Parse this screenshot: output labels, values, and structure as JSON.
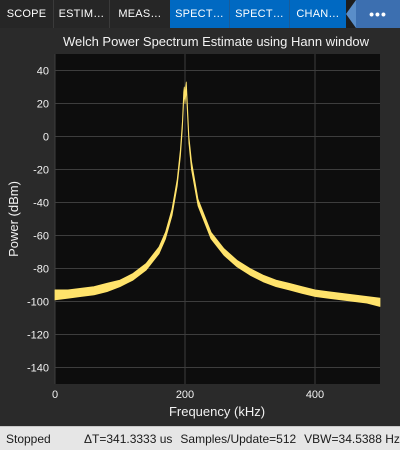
{
  "toolstrip": {
    "tabs": [
      {
        "label": "SCOPE",
        "active": false
      },
      {
        "label": "ESTIM…",
        "active": false
      },
      {
        "label": "MEAS…",
        "active": false
      },
      {
        "label": "SPECT…",
        "active": true
      },
      {
        "label": "SPECT…",
        "active": true
      },
      {
        "label": "CHAN…",
        "active": true
      }
    ],
    "overflow_label": "•••"
  },
  "colors": {
    "trace": "#ffe36b",
    "plot_bg": "#0d0d0d",
    "panel_bg": "#2a2a2a",
    "grid": "#3d3d3d",
    "tab_active": "#0069c2"
  },
  "chart_data": {
    "type": "line",
    "title": "Welch Power Spectrum Estimate using Hann window",
    "xlabel": "Frequency (kHz)",
    "ylabel": "Power (dBm)",
    "xlim": [
      0,
      500
    ],
    "ylim": [
      -150,
      50
    ],
    "xticks": [
      0,
      200,
      400
    ],
    "yticks": [
      40,
      20,
      0,
      -20,
      -40,
      -60,
      -80,
      -100,
      -120,
      -140
    ],
    "grid": true,
    "series": [
      {
        "x": [
          0,
          20,
          40,
          60,
          80,
          100,
          120,
          140,
          160,
          170,
          180,
          188,
          193,
          196,
          198,
          199,
          200,
          201,
          202,
          204,
          206,
          210,
          220,
          240,
          260,
          280,
          300,
          320,
          340,
          360,
          380,
          400,
          420,
          440,
          460,
          480,
          500
        ],
        "lower": [
          -99,
          -98,
          -97,
          -96,
          -94,
          -91,
          -87,
          -81,
          -71,
          -62,
          -48,
          -30,
          -12,
          5,
          22,
          26,
          20,
          25,
          28,
          12,
          -4,
          -20,
          -42,
          -62,
          -72,
          -79,
          -84,
          -88,
          -91,
          -93,
          -95,
          -97,
          -98,
          -99,
          -100,
          -101,
          -103
        ],
        "upper": [
          -93,
          -93,
          -92,
          -91,
          -89,
          -87,
          -83,
          -77,
          -67,
          -58,
          -44,
          -26,
          -8,
          9,
          27,
          30,
          25,
          30,
          33,
          17,
          0,
          -15,
          -38,
          -58,
          -68,
          -75,
          -80,
          -84,
          -87,
          -89,
          -91,
          -93,
          -94,
          -95,
          -96,
          -97,
          -98
        ]
      }
    ]
  },
  "status": {
    "state": "Stopped",
    "delta_t": "ΔT=341.3333 us",
    "samples_per_update": "Samples/Update=512",
    "vbw": "VBW=34.5388 Hz"
  }
}
